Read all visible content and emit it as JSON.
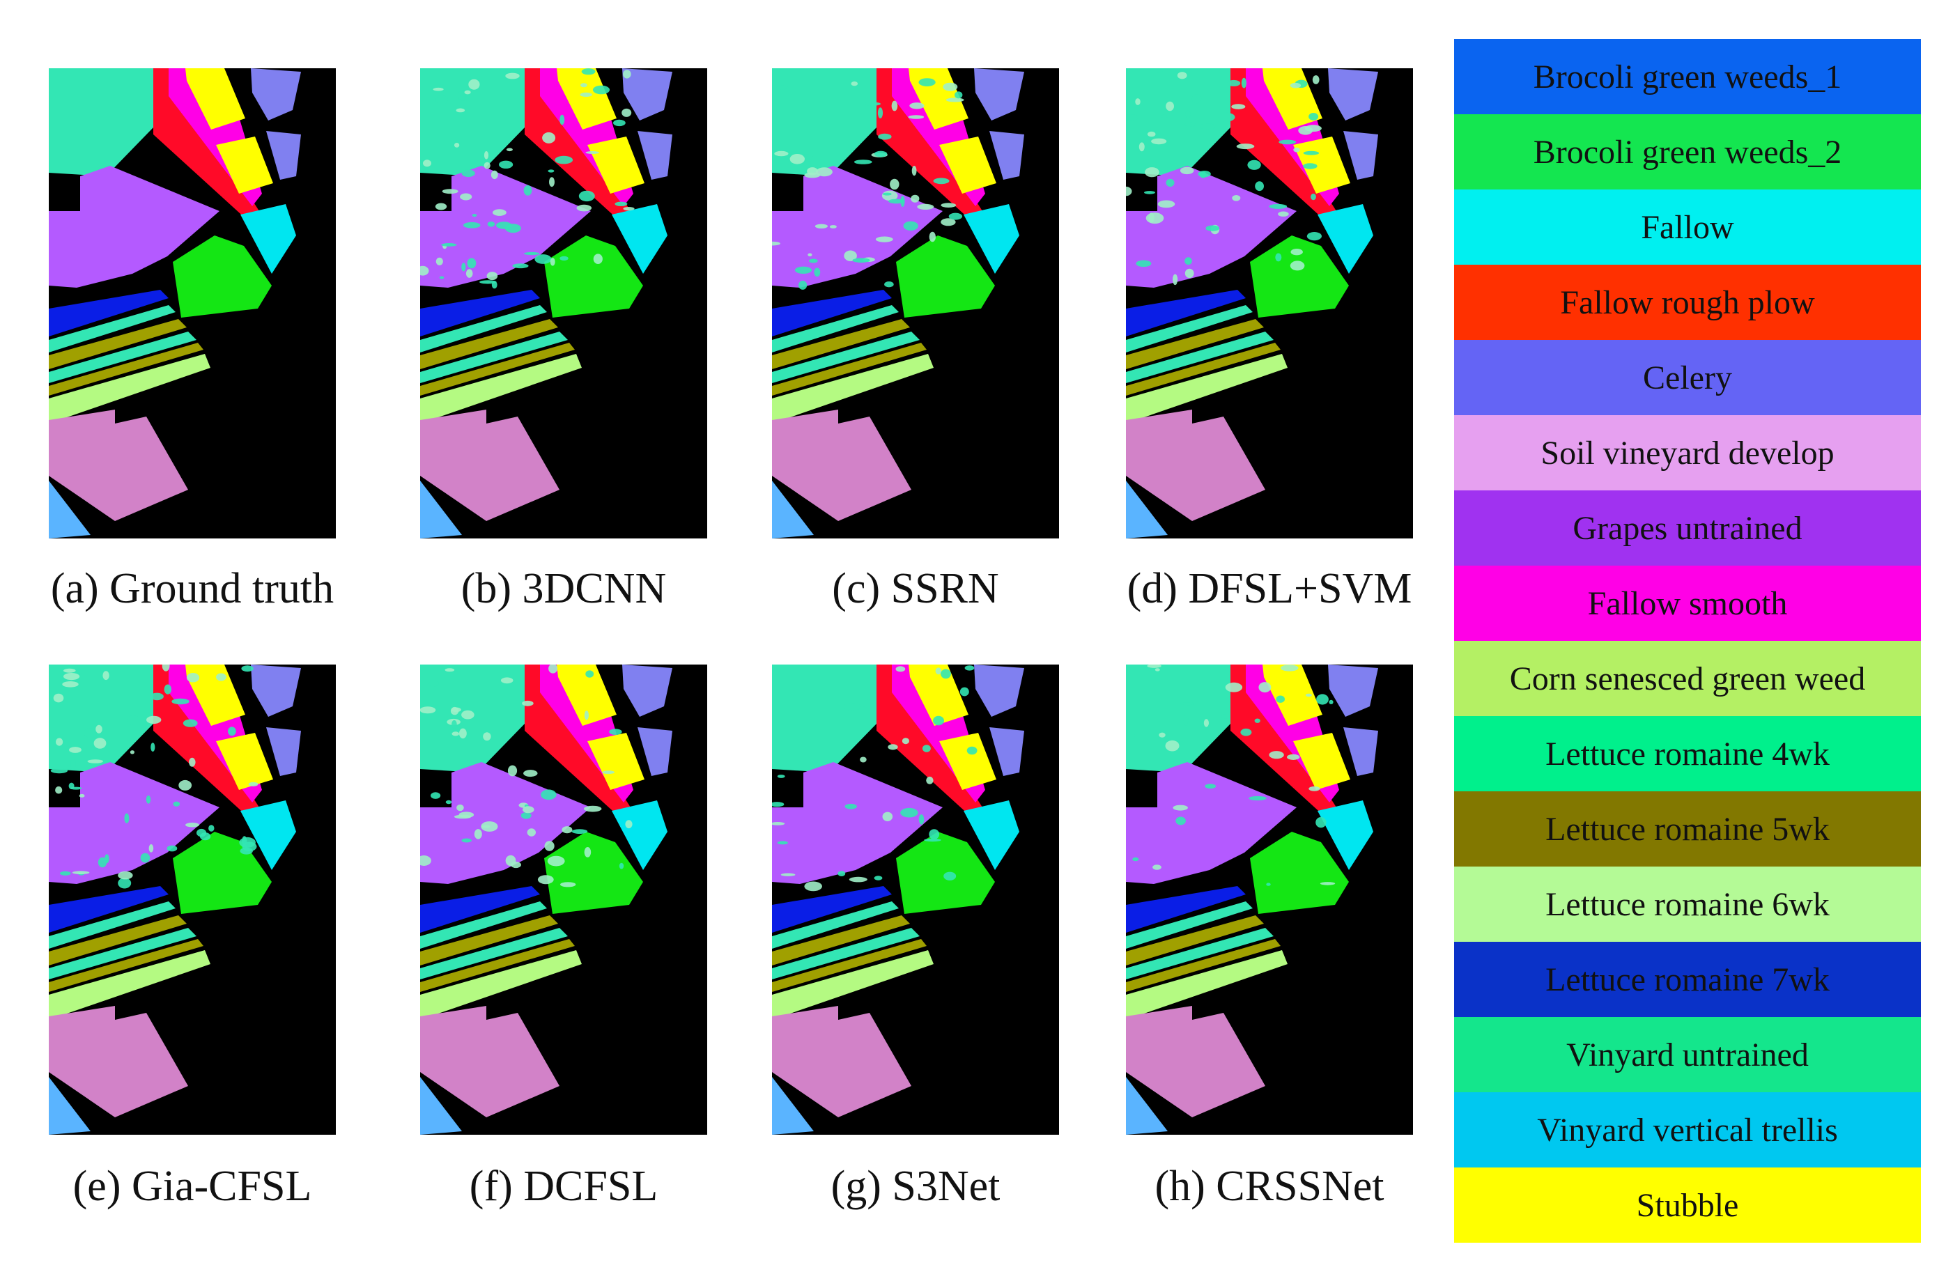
{
  "figure": {
    "panels": [
      {
        "label": "(a) Ground truth",
        "noise": 0.0
      },
      {
        "label": "(b) 3DCNN",
        "noise": 1.0
      },
      {
        "label": "(c) SSRN",
        "noise": 0.8
      },
      {
        "label": "(d) DFSL+SVM",
        "noise": 0.9
      },
      {
        "label": "(e) Gia-CFSL",
        "noise": 0.9
      },
      {
        "label": "(f) DCFSL",
        "noise": 0.8
      },
      {
        "label": "(g) S3Net",
        "noise": 0.5
      },
      {
        "label": "(h) CRSSNet",
        "noise": 0.5
      }
    ],
    "legend": [
      {
        "label": "Brocoli green weeds_1",
        "color": "#0a64f0",
        "text_color": "#111111"
      },
      {
        "label": "Brocoli green weeds_2",
        "color": "#14e650",
        "text_color": "#111111"
      },
      {
        "label": "Fallow",
        "color": "#00f0f0",
        "text_color": "#111111"
      },
      {
        "label": "Fallow rough plow",
        "color": "#ff3000",
        "text_color": "#111111"
      },
      {
        "label": "Celery",
        "color": "#6464f5",
        "text_color": "#111111"
      },
      {
        "label": "Soil vineyard develop",
        "color": "#e6a0f0",
        "text_color": "#111111"
      },
      {
        "label": "Grapes untrained",
        "color": "#a032f0",
        "text_color": "#111111"
      },
      {
        "label": "Fallow smooth",
        "color": "#ff00e6",
        "text_color": "#111111"
      },
      {
        "label": "Corn senesced green weed",
        "color": "#b4f064",
        "text_color": "#111111"
      },
      {
        "label": "Lettuce romaine 4wk",
        "color": "#00f08c",
        "text_color": "#111111"
      },
      {
        "label": "Lettuce romaine 5wk",
        "color": "#827800",
        "text_color": "#111111"
      },
      {
        "label": "Lettuce romaine 6wk",
        "color": "#b4fa96",
        "text_color": "#111111"
      },
      {
        "label": "Lettuce romaine 7wk",
        "color": "#0a32c8",
        "text_color": "#111111"
      },
      {
        "label": "Vinyard untrained",
        "color": "#14e68c",
        "text_color": "#111111"
      },
      {
        "label": "Vinyard vertical trellis",
        "color": "#00c8f0",
        "text_color": "#111111"
      },
      {
        "label": "Stubble",
        "color": "#ffff00",
        "text_color": "#111111"
      }
    ],
    "map_colors": {
      "background": "#000000",
      "lettuce_4wk": "#33e6b4",
      "fallow_rough_plow": "#ff0a28",
      "fallow_smooth": "#ff00e6",
      "stubble": "#ffff00",
      "celery": "#8080f0",
      "grapes_untrained": "#b45aff",
      "fallow": "#00e6f0",
      "broccoli_2": "#14e614",
      "lettuce_7wk": "#0a1ee6",
      "vinyard_untrained": "#33e6b4",
      "lettuce_5wk": "#a0a000",
      "lettuce_6wk": "#b4fa82",
      "soil_vineyard": "#d282c8",
      "vinyard_trellis": "#5ab4ff",
      "noise_a": "#a0f0c8",
      "noise_b": "#50a0ff"
    }
  }
}
